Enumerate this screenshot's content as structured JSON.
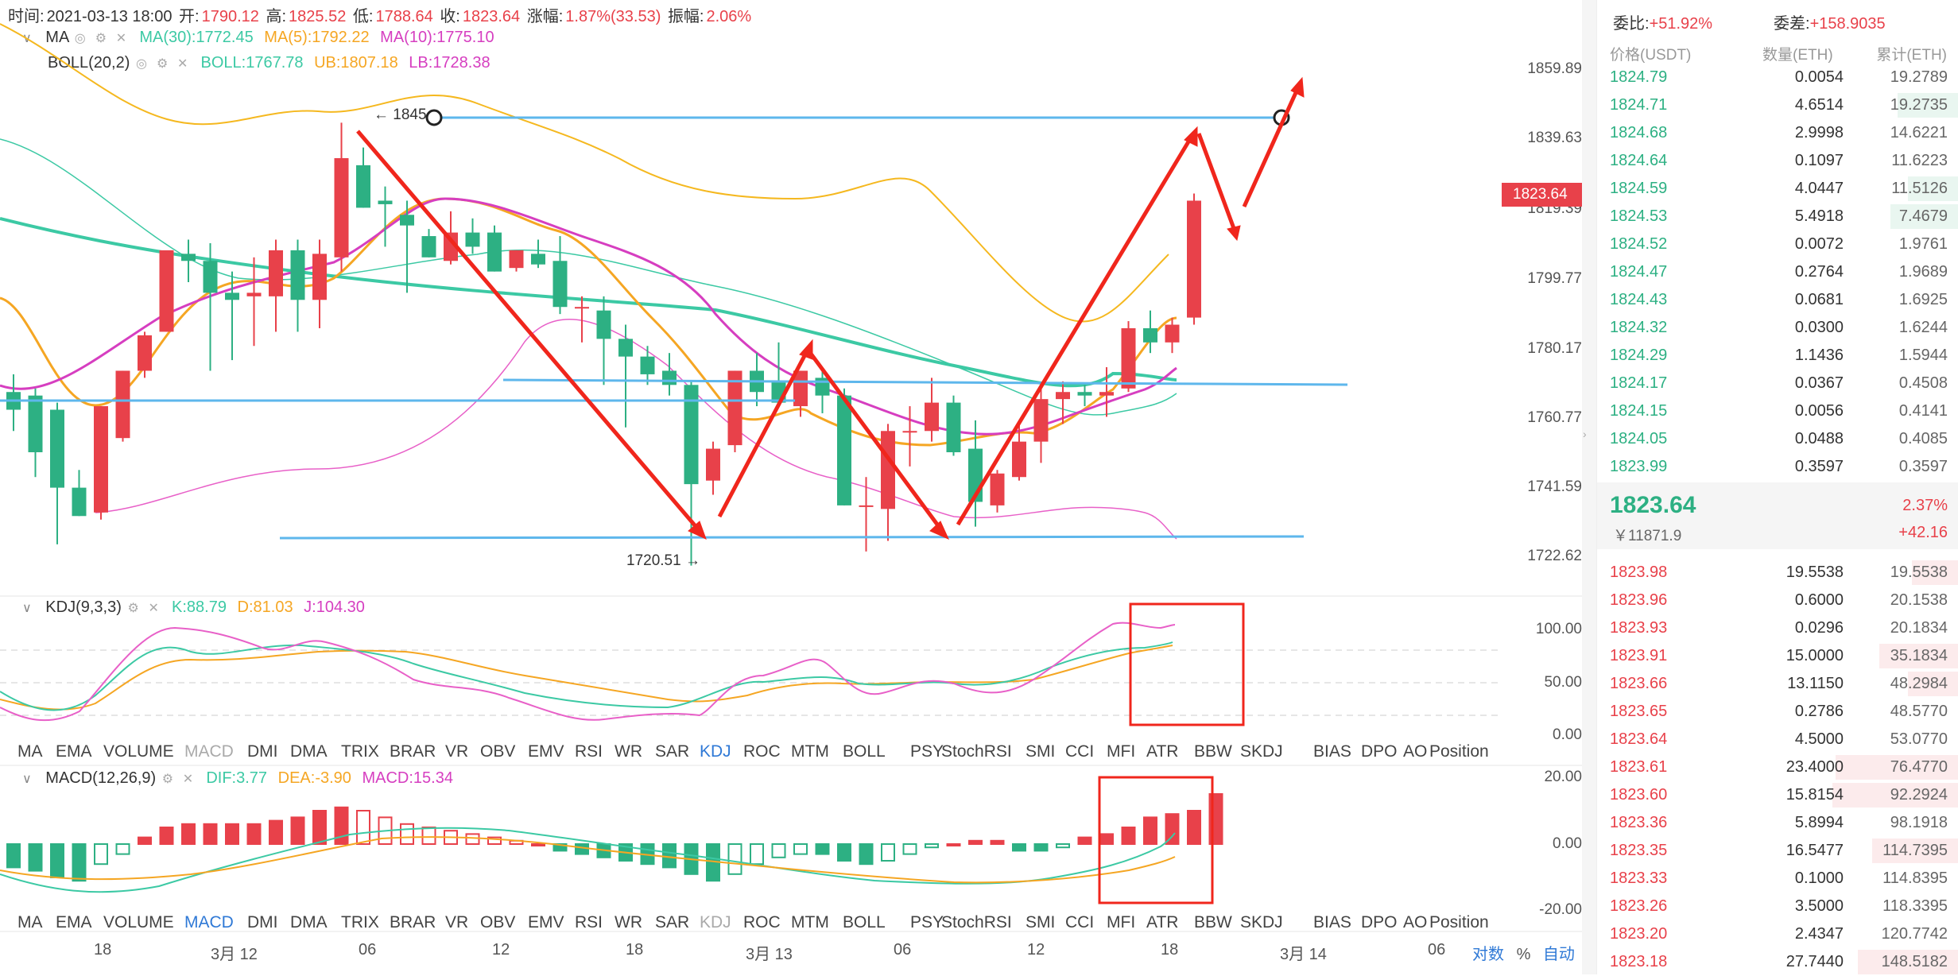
{
  "info": {
    "time_label": "时间:",
    "time": "2021-03-13 18:00",
    "open_label": "开:",
    "open": "1790.12",
    "high_label": "高:",
    "high": "1825.52",
    "low_label": "低:",
    "low": "1788.64",
    "close_label": "收:",
    "close": "1823.64",
    "change_label": "涨幅:",
    "change": "1.87%(33.53)",
    "amp_label": "振幅:",
    "amp": "2.06%"
  },
  "ma": {
    "name": "MA",
    "ma30_label": "MA(30):",
    "ma30": "1772.45",
    "ma5_label": "MA(5):",
    "ma5": "1792.22",
    "ma10_label": "MA(10):",
    "ma10": "1775.10"
  },
  "boll": {
    "name": "BOLL(20,2)",
    "boll_label": "BOLL:",
    "boll": "1767.78",
    "ub_label": "UB:",
    "ub": "1807.18",
    "lb_label": "LB:",
    "lb": "1728.38"
  },
  "kdj": {
    "name": "KDJ(9,3,3)",
    "k_label": "K:",
    "k": "88.79",
    "d_label": "D:",
    "d": "81.03",
    "j_label": "J:",
    "j": "104.30"
  },
  "macd": {
    "name": "MACD(12,26,9)",
    "dif_label": "DIF:",
    "dif": "3.77",
    "dea_label": "DEA:",
    "dea": "-3.90",
    "macd_label": "MACD:",
    "macd": "15.34"
  },
  "price_axis": [
    "1859.89",
    "1839.63",
    "1819.39",
    "1799.77",
    "1780.17",
    "1760.77",
    "1741.59",
    "1722.62"
  ],
  "current_price_tag": "1823.64",
  "annotations": {
    "high_marker": "← 1845",
    "low_marker": "1720.51 →"
  },
  "kdj_axis": [
    "100.00",
    "50.00",
    "0.00"
  ],
  "macd_axis": [
    "20.00",
    "0.00",
    "-20.00"
  ],
  "indicator_tabs": [
    "MA",
    "EMA",
    "VOLUME",
    "MACD",
    "DMI",
    "DMA",
    "TRIX",
    "BRAR",
    "VR",
    "OBV",
    "EMV",
    "RSI",
    "WR",
    "SAR",
    "KDJ",
    "ROC",
    "MTM",
    "BOLL",
    "PSY",
    "StochRSI",
    "SMI",
    "CCI",
    "MFI",
    "ATR",
    "BBW",
    "SKDJ",
    "BIAS",
    "DPO",
    "AO",
    "Position"
  ],
  "time_axis": [
    "18",
    "3月 12",
    "06",
    "12",
    "18",
    "3月 13",
    "06",
    "12",
    "18",
    "3月 14",
    "06"
  ],
  "axis_controls": {
    "log": "对数",
    "percent": "%",
    "auto": "自动"
  },
  "orderbook": {
    "ratio_label": "委比:",
    "ratio": "+51.92%",
    "diff_label": "委差:",
    "diff": "+158.9035",
    "col_price": "价格(USDT)",
    "col_qty": "数量(ETH)",
    "col_cum": "累计(ETH)",
    "asks": [
      {
        "price": "1824.79",
        "qty": "0.0054",
        "cum": "19.2789",
        "depth": 0.0
      },
      {
        "price": "1824.71",
        "qty": "4.6514",
        "cum": "19.2735",
        "depth": 0.17
      },
      {
        "price": "1824.68",
        "qty": "2.9998",
        "cum": "14.6221",
        "depth": 0.0
      },
      {
        "price": "1824.64",
        "qty": "0.1097",
        "cum": "11.6223",
        "depth": 0.0
      },
      {
        "price": "1824.59",
        "qty": "4.0447",
        "cum": "11.5126",
        "depth": 0.14
      },
      {
        "price": "1824.53",
        "qty": "5.4918",
        "cum": "7.4679",
        "depth": 0.19
      },
      {
        "price": "1824.52",
        "qty": "0.0072",
        "cum": "1.9761",
        "depth": 0.0
      },
      {
        "price": "1824.47",
        "qty": "0.2764",
        "cum": "1.9689",
        "depth": 0.0
      },
      {
        "price": "1824.43",
        "qty": "0.0681",
        "cum": "1.6925",
        "depth": 0.0
      },
      {
        "price": "1824.32",
        "qty": "0.0300",
        "cum": "1.6244",
        "depth": 0.0
      },
      {
        "price": "1824.29",
        "qty": "1.1436",
        "cum": "1.5944",
        "depth": 0.0
      },
      {
        "price": "1824.17",
        "qty": "0.0367",
        "cum": "0.4508",
        "depth": 0.0
      },
      {
        "price": "1824.15",
        "qty": "0.0056",
        "cum": "0.4141",
        "depth": 0.0
      },
      {
        "price": "1824.05",
        "qty": "0.0488",
        "cum": "0.4085",
        "depth": 0.0
      },
      {
        "price": "1823.99",
        "qty": "0.3597",
        "cum": "0.3597",
        "depth": 0.0
      }
    ],
    "last_price": "1823.64",
    "last_change_pct": "2.37%",
    "last_cny": "￥11871.9",
    "last_change": "+42.16",
    "bids": [
      {
        "price": "1823.98",
        "qty": "19.5538",
        "cum": "19.5538",
        "depth": 0.13
      },
      {
        "price": "1823.96",
        "qty": "0.6000",
        "cum": "20.1538",
        "depth": 0.0
      },
      {
        "price": "1823.93",
        "qty": "0.0296",
        "cum": "20.1834",
        "depth": 0.0
      },
      {
        "price": "1823.91",
        "qty": "15.0000",
        "cum": "35.1834",
        "depth": 0.22
      },
      {
        "price": "1823.66",
        "qty": "13.1150",
        "cum": "48.2984",
        "depth": 0.14
      },
      {
        "price": "1823.65",
        "qty": "0.2786",
        "cum": "48.5770",
        "depth": 0.0
      },
      {
        "price": "1823.64",
        "qty": "4.5000",
        "cum": "53.0770",
        "depth": 0.0
      },
      {
        "price": "1823.61",
        "qty": "23.4000",
        "cum": "76.4770",
        "depth": 0.34
      },
      {
        "price": "1823.60",
        "qty": "15.8154",
        "cum": "92.2924",
        "depth": 0.35
      },
      {
        "price": "1823.36",
        "qty": "5.8994",
        "cum": "98.1918",
        "depth": 0.0
      },
      {
        "price": "1823.35",
        "qty": "16.5477",
        "cum": "114.7395",
        "depth": 0.24
      },
      {
        "price": "1823.33",
        "qty": "0.1000",
        "cum": "114.8395",
        "depth": 0.0
      },
      {
        "price": "1823.26",
        "qty": "3.5000",
        "cum": "118.3395",
        "depth": 0.0
      },
      {
        "price": "1823.20",
        "qty": "2.4347",
        "cum": "120.7742",
        "depth": 0.0
      },
      {
        "price": "1823.18",
        "qty": "27.7440",
        "cum": "148.5182",
        "depth": 0.28
      }
    ]
  },
  "colors": {
    "up": "#e8414a",
    "down": "#2db083",
    "blue_line": "#5eb7ec",
    "arrow": "#f0261c",
    "ma5": "#f5a623",
    "ma10": "#d63ec0",
    "ma30": "#3cc9a4"
  },
  "chart_data": {
    "type": "candlestick",
    "candles": [
      {
        "o": 1769,
        "h": 1774,
        "l": 1758,
        "c": 1764
      },
      {
        "o": 1768,
        "h": 1770,
        "l": 1745,
        "c": 1752
      },
      {
        "o": 1764,
        "h": 1766,
        "l": 1726,
        "c": 1742
      },
      {
        "o": 1742,
        "h": 1747,
        "l": 1734,
        "c": 1734
      },
      {
        "o": 1735,
        "h": 1765,
        "l": 1733,
        "c": 1765
      },
      {
        "o": 1756,
        "h": 1775,
        "l": 1755,
        "c": 1775
      },
      {
        "o": 1775,
        "h": 1786,
        "l": 1773,
        "c": 1785
      },
      {
        "o": 1786,
        "h": 1808,
        "l": 1786,
        "c": 1809
      },
      {
        "o": 1808,
        "h": 1812,
        "l": 1800,
        "c": 1806
      },
      {
        "o": 1806,
        "h": 1811,
        "l": 1775,
        "c": 1797
      },
      {
        "o": 1797,
        "h": 1803,
        "l": 1778,
        "c": 1795
      },
      {
        "o": 1796,
        "h": 1807,
        "l": 1782,
        "c": 1797
      },
      {
        "o": 1796,
        "h": 1812,
        "l": 1786,
        "c": 1809
      },
      {
        "o": 1809,
        "h": 1812,
        "l": 1786,
        "c": 1795
      },
      {
        "o": 1795,
        "h": 1812,
        "l": 1787,
        "c": 1808
      },
      {
        "o": 1807,
        "h": 1845,
        "l": 1803,
        "c": 1835
      },
      {
        "o": 1833,
        "h": 1838,
        "l": 1821,
        "c": 1821
      },
      {
        "o": 1823,
        "h": 1827,
        "l": 1810,
        "c": 1822
      },
      {
        "o": 1819,
        "h": 1823,
        "l": 1797,
        "c": 1816
      },
      {
        "o": 1813,
        "h": 1815,
        "l": 1807,
        "c": 1807
      },
      {
        "o": 1806,
        "h": 1820,
        "l": 1805,
        "c": 1814
      },
      {
        "o": 1814,
        "h": 1818,
        "l": 1808,
        "c": 1810
      },
      {
        "o": 1814,
        "h": 1816,
        "l": 1803,
        "c": 1803
      },
      {
        "o": 1804,
        "h": 1809,
        "l": 1803,
        "c": 1809
      },
      {
        "o": 1808,
        "h": 1812,
        "l": 1804,
        "c": 1805
      },
      {
        "o": 1806,
        "h": 1813,
        "l": 1791,
        "c": 1793
      },
      {
        "o": 1793,
        "h": 1796,
        "l": 1783,
        "c": 1793
      },
      {
        "o": 1792,
        "h": 1796,
        "l": 1771,
        "c": 1784
      },
      {
        "o": 1784,
        "h": 1788,
        "l": 1759,
        "c": 1779
      },
      {
        "o": 1779,
        "h": 1782,
        "l": 1771,
        "c": 1774
      },
      {
        "o": 1775,
        "h": 1780,
        "l": 1768,
        "c": 1771
      },
      {
        "o": 1771,
        "h": 1772,
        "l": 1720,
        "c": 1743
      },
      {
        "o": 1744,
        "h": 1755,
        "l": 1740,
        "c": 1753
      },
      {
        "o": 1754,
        "h": 1775,
        "l": 1752,
        "c": 1775
      },
      {
        "o": 1775,
        "h": 1780,
        "l": 1765,
        "c": 1769
      },
      {
        "o": 1772,
        "h": 1783,
        "l": 1766,
        "c": 1766
      },
      {
        "o": 1765,
        "h": 1775,
        "l": 1762,
        "c": 1775
      },
      {
        "o": 1773,
        "h": 1776,
        "l": 1763,
        "c": 1768
      },
      {
        "o": 1768,
        "h": 1770,
        "l": 1737,
        "c": 1737
      },
      {
        "o": 1737,
        "h": 1745,
        "l": 1724,
        "c": 1737
      },
      {
        "o": 1736,
        "h": 1760,
        "l": 1727,
        "c": 1758
      },
      {
        "o": 1758,
        "h": 1765,
        "l": 1748,
        "c": 1758
      },
      {
        "o": 1758,
        "h": 1773,
        "l": 1755,
        "c": 1766
      },
      {
        "o": 1766,
        "h": 1768,
        "l": 1751,
        "c": 1752
      },
      {
        "o": 1753,
        "h": 1761,
        "l": 1731,
        "c": 1738
      },
      {
        "o": 1737,
        "h": 1747,
        "l": 1735,
        "c": 1746
      },
      {
        "o": 1745,
        "h": 1760,
        "l": 1744,
        "c": 1755
      },
      {
        "o": 1755,
        "h": 1770,
        "l": 1749,
        "c": 1767
      },
      {
        "o": 1767,
        "h": 1772,
        "l": 1760,
        "c": 1769
      },
      {
        "o": 1769,
        "h": 1771,
        "l": 1765,
        "c": 1768
      },
      {
        "o": 1768,
        "h": 1776,
        "l": 1762,
        "c": 1769
      },
      {
        "o": 1770,
        "h": 1789,
        "l": 1769,
        "c": 1787
      },
      {
        "o": 1787,
        "h": 1792,
        "l": 1780,
        "c": 1783
      },
      {
        "o": 1783,
        "h": 1790,
        "l": 1780,
        "c": 1788
      },
      {
        "o": 1790,
        "h": 1825,
        "l": 1788,
        "c": 1823
      }
    ],
    "macd_hist": [
      -7,
      -8,
      -10,
      -11,
      -6,
      -3,
      2,
      5,
      6,
      6,
      6,
      6,
      7,
      8,
      10,
      11,
      10,
      8,
      6,
      5,
      4,
      3,
      2,
      1,
      0,
      -2,
      -3,
      -4,
      -5,
      -6,
      -7,
      -9,
      -11,
      -9,
      -6,
      -4,
      -3,
      -3,
      -5,
      -6,
      -5,
      -3,
      -1,
      0,
      1,
      1,
      -2,
      -2,
      -1,
      2,
      3,
      5,
      8,
      9,
      10,
      15
    ]
  }
}
